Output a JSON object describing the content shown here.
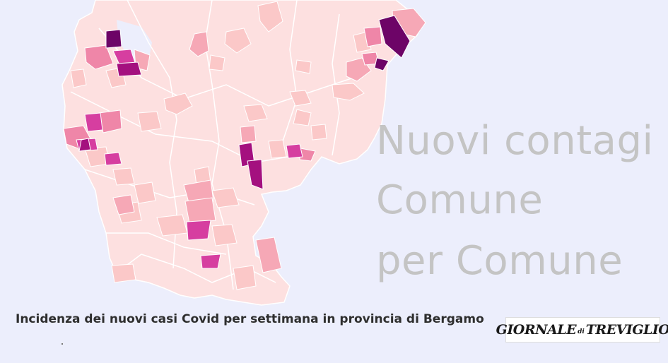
{
  "headline": {
    "line1": "Nuovi contagi",
    "line2": "Comune",
    "line3": "per Comune"
  },
  "subtitle": "Incidenza dei nuovi casi Covid per settimana in provincia di Bergamo",
  "logo": {
    "part1": "GIORNALE",
    "part2": "di",
    "part3": "TREVIGLIO"
  },
  "colors": {
    "background": "#eceefc",
    "base": "#fde0e0",
    "light": "#fbc8c8",
    "medium": "#f6a8b6",
    "strong": "#ef86a8",
    "high": "#d63ea0",
    "very_high": "#a4107f",
    "max": "#6d0467",
    "headline": "#c4c4c4"
  }
}
